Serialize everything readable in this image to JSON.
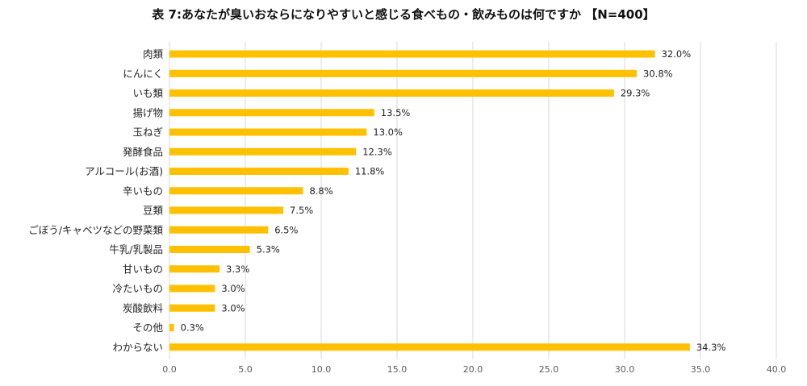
{
  "chart_data": {
    "type": "bar",
    "orientation": "horizontal",
    "title": "表 7:あなたが臭いおならになりやすいと感じる食べもの・飲みものは何ですか 【N=400】",
    "categories": [
      "肉類",
      "にんにく",
      "いも類",
      "揚げ物",
      "玉ねぎ",
      "発酵食品",
      "アルコール(お酒)",
      "辛いもの",
      "豆類",
      "ごぼう/キャベツなどの野菜類",
      "牛乳/乳製品",
      "甘いもの",
      "冷たいもの",
      "炭酸飲料",
      "その他",
      "わからない"
    ],
    "values": [
      32.0,
      30.8,
      29.3,
      13.5,
      13.0,
      12.3,
      11.8,
      8.8,
      7.5,
      6.5,
      5.3,
      3.3,
      3.0,
      3.0,
      0.3,
      34.3
    ],
    "data_labels": [
      "32.0%",
      "30.8%",
      "29.3%",
      "13.5%",
      "13.0%",
      "12.3%",
      "11.8%",
      "8.8%",
      "7.5%",
      "6.5%",
      "5.3%",
      "3.3%",
      "3.0%",
      "3.0%",
      "0.3%",
      "34.3%"
    ],
    "xlim": [
      0,
      40
    ],
    "xticks": [
      0,
      5,
      10,
      15,
      20,
      25,
      30,
      35,
      40
    ],
    "xtick_labels": [
      "0.0",
      "5.0",
      "10.0",
      "15.0",
      "20.0",
      "25.0",
      "30.0",
      "35.0",
      "40.0"
    ],
    "xlabel": "",
    "ylabel": "",
    "grid": "vertical",
    "legend": "none",
    "bar_color": "#FFC000"
  }
}
